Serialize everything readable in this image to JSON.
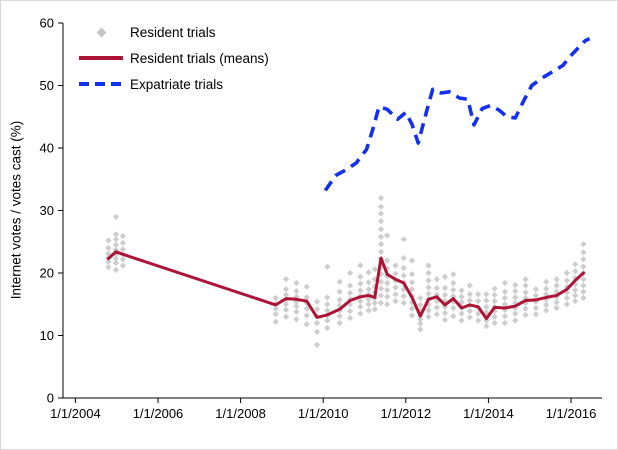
{
  "legend": {
    "position": "top-left-inside",
    "items": [
      {
        "label": "Resident trials",
        "marker": "diamond",
        "color": "#c4c4c4"
      },
      {
        "label": "Resident trials (means)",
        "marker": "solid-line",
        "color": "#ad1335"
      },
      {
        "label": "Expatriate trials",
        "marker": "dashed-line",
        "color": "#1330f0"
      }
    ]
  },
  "chart_data": {
    "type": "line",
    "title": "",
    "xlabel": "",
    "ylabel": "Internet votes / votes cast (%)",
    "grid": false,
    "legend_position": "top-left-inside",
    "xlim": [
      2003.7,
      2016.75
    ],
    "ylim": [
      0,
      60
    ],
    "y_ticks": [
      0,
      10,
      20,
      30,
      40,
      50,
      60
    ],
    "x_tick_years": [
      2004,
      2006,
      2008,
      2010,
      2012,
      2014,
      2016
    ],
    "x_tick_labels": [
      "1/1/2004",
      "1/1/2006",
      "1/1/2008",
      "1/1/2010",
      "1/1/2012",
      "1/1/2014",
      "1/1/2016"
    ],
    "series": [
      {
        "name": "Resident trials",
        "type": "scatter",
        "marker": "diamond",
        "color": "#c4c4c4",
        "clusters": [
          [
            2004.8,
            [
              20.9,
              21.8,
              22.4,
              23.1,
              24.0,
              25.2
            ]
          ],
          [
            2004.98,
            [
              20.5,
              21.6,
              22.3,
              23.0,
              23.7,
              24.5,
              25.4,
              26.2,
              29.0
            ]
          ],
          [
            2005.15,
            [
              21.2,
              22.2,
              23.0,
              23.8,
              24.8,
              25.9
            ]
          ],
          [
            2008.85,
            [
              12.2,
              13.4,
              14.3,
              15.1,
              16.0
            ]
          ],
          [
            2009.1,
            [
              13.0,
              14.1,
              15.0,
              15.7,
              16.5,
              17.4,
              19.0
            ]
          ],
          [
            2009.35,
            [
              12.6,
              13.8,
              14.7,
              15.4,
              16.2,
              17.1,
              18.4
            ]
          ],
          [
            2009.6,
            [
              11.8,
              13.2,
              14.3,
              15.2,
              16.1,
              17.8
            ]
          ],
          [
            2009.85,
            [
              8.5,
              10.6,
              12.0,
              13.1,
              14.2,
              15.4
            ]
          ],
          [
            2010.1,
            [
              11.2,
              12.4,
              13.2,
              14.0,
              15.0,
              16.1,
              21.0
            ]
          ],
          [
            2010.4,
            [
              12.0,
              13.1,
              14.0,
              14.8,
              15.7,
              17.0,
              18.6
            ]
          ],
          [
            2010.65,
            [
              12.8,
              13.9,
              15.0,
              15.8,
              16.8,
              18.0,
              20.0
            ]
          ],
          [
            2010.9,
            [
              13.5,
              14.6,
              15.5,
              16.3,
              17.2,
              18.3,
              19.4,
              21.2
            ]
          ],
          [
            2011.1,
            [
              14.0,
              15.0,
              15.8,
              16.6,
              17.4,
              18.5,
              20.1
            ]
          ],
          [
            2011.25,
            [
              14.2,
              15.2,
              16.0,
              16.9,
              17.8,
              19.0,
              20.6
            ]
          ],
          [
            2011.4,
            [
              15.2,
              16.4,
              17.5,
              18.6,
              19.8,
              21.0,
              22.2,
              23.4,
              24.6,
              25.8,
              27.0,
              28.3,
              29.5,
              30.6,
              32.0
            ]
          ],
          [
            2011.55,
            [
              15.0,
              16.2,
              17.3,
              18.4,
              19.5,
              20.7,
              22.0,
              26.0
            ]
          ],
          [
            2011.75,
            [
              15.5,
              16.6,
              17.7,
              18.8,
              19.9,
              21.2
            ]
          ],
          [
            2011.95,
            [
              15.2,
              16.3,
              17.4,
              18.5,
              19.6,
              20.8,
              22.4,
              25.4
            ]
          ],
          [
            2012.15,
            [
              13.2,
              14.3,
              15.3,
              16.3,
              17.4,
              18.5,
              19.8,
              22.0
            ]
          ],
          [
            2012.35,
            [
              11.0,
              11.9,
              12.6,
              13.3,
              14.0,
              14.9,
              16.0
            ]
          ],
          [
            2012.55,
            [
              13.0,
              14.0,
              15.0,
              15.8,
              16.7,
              17.7,
              18.8,
              20.0,
              21.2
            ]
          ],
          [
            2012.75,
            [
              13.4,
              14.5,
              15.5,
              16.5,
              17.6,
              19.0
            ]
          ],
          [
            2012.95,
            [
              12.5,
              13.6,
              14.6,
              15.5,
              16.5,
              17.6,
              19.4
            ]
          ],
          [
            2013.15,
            [
              13.1,
              14.4,
              15.4,
              16.3,
              17.3,
              18.4,
              19.8
            ]
          ],
          [
            2013.35,
            [
              12.4,
              13.5,
              14.5,
              15.3,
              16.2,
              17.2
            ]
          ],
          [
            2013.55,
            [
              12.9,
              13.9,
              14.8,
              15.6,
              16.6,
              18.0
            ]
          ],
          [
            2013.75,
            [
              12.4,
              13.5,
              14.5,
              15.5,
              16.6
            ]
          ],
          [
            2013.95,
            [
              11.5,
              12.4,
              13.0,
              13.7,
              14.6,
              15.6,
              16.6
            ]
          ],
          [
            2014.15,
            [
              12.0,
              13.0,
              13.9,
              14.6,
              15.5,
              16.5,
              17.5
            ]
          ],
          [
            2014.4,
            [
              12.0,
              13.1,
              14.1,
              15.0,
              16.0,
              17.0,
              18.4
            ]
          ],
          [
            2014.65,
            [
              12.4,
              13.5,
              14.4,
              15.2,
              16.1,
              17.1,
              18.1
            ]
          ],
          [
            2014.9,
            [
              13.3,
              14.3,
              15.2,
              16.0,
              16.9,
              18.0,
              19.0
            ]
          ],
          [
            2015.15,
            [
              13.4,
              14.4,
              15.4,
              16.4,
              17.4
            ]
          ],
          [
            2015.4,
            [
              14.0,
              14.9,
              15.8,
              16.6,
              17.5,
              18.6
            ]
          ],
          [
            2015.65,
            [
              14.4,
              15.3,
              16.2,
              17.0,
              18.0,
              19.0
            ]
          ],
          [
            2015.9,
            [
              15.0,
              16.0,
              16.9,
              17.8,
              18.8,
              20.0
            ]
          ],
          [
            2016.1,
            [
              15.5,
              16.4,
              17.3,
              18.2,
              19.2,
              20.3,
              21.4
            ]
          ],
          [
            2016.3,
            [
              16.0,
              17.0,
              18.0,
              19.0,
              20.0,
              21.0,
              22.2,
              23.3,
              24.6
            ]
          ]
        ]
      },
      {
        "name": "Resident trials (means)",
        "type": "line",
        "dash": false,
        "color": "#ad1335",
        "points": [
          [
            2004.8,
            22.3
          ],
          [
            2004.98,
            23.4
          ],
          [
            2005.15,
            23.0
          ],
          [
            2008.85,
            14.9
          ],
          [
            2009.1,
            15.9
          ],
          [
            2009.35,
            15.8
          ],
          [
            2009.6,
            15.5
          ],
          [
            2009.85,
            12.9
          ],
          [
            2010.1,
            13.3
          ],
          [
            2010.4,
            14.2
          ],
          [
            2010.65,
            15.6
          ],
          [
            2010.9,
            16.2
          ],
          [
            2011.1,
            16.4
          ],
          [
            2011.25,
            16.1
          ],
          [
            2011.4,
            22.4
          ],
          [
            2011.55,
            19.8
          ],
          [
            2011.75,
            19.0
          ],
          [
            2011.95,
            18.4
          ],
          [
            2012.15,
            16.1
          ],
          [
            2012.35,
            13.1
          ],
          [
            2012.55,
            15.8
          ],
          [
            2012.75,
            16.2
          ],
          [
            2012.95,
            14.9
          ],
          [
            2013.15,
            15.9
          ],
          [
            2013.35,
            14.4
          ],
          [
            2013.55,
            14.9
          ],
          [
            2013.75,
            14.6
          ],
          [
            2013.95,
            12.7
          ],
          [
            2014.15,
            14.5
          ],
          [
            2014.4,
            14.4
          ],
          [
            2014.65,
            14.7
          ],
          [
            2014.9,
            15.6
          ],
          [
            2015.15,
            15.7
          ],
          [
            2015.4,
            16.1
          ],
          [
            2015.65,
            16.4
          ],
          [
            2015.9,
            17.4
          ],
          [
            2016.1,
            18.8
          ],
          [
            2016.3,
            20.0
          ]
        ]
      },
      {
        "name": "Expatriate trials",
        "type": "line",
        "dash": true,
        "color": "#1330f0",
        "points": [
          [
            2010.05,
            33.2
          ],
          [
            2010.3,
            35.6
          ],
          [
            2010.55,
            36.5
          ],
          [
            2010.8,
            37.6
          ],
          [
            2011.05,
            39.8
          ],
          [
            2011.2,
            43.0
          ],
          [
            2011.35,
            46.6
          ],
          [
            2011.55,
            46.2
          ],
          [
            2011.8,
            44.6
          ],
          [
            2012.0,
            45.7
          ],
          [
            2012.15,
            43.8
          ],
          [
            2012.3,
            40.8
          ],
          [
            2012.5,
            45.8
          ],
          [
            2012.65,
            49.4
          ],
          [
            2012.85,
            48.8
          ],
          [
            2013.05,
            49.0
          ],
          [
            2013.3,
            48.0
          ],
          [
            2013.5,
            47.8
          ],
          [
            2013.65,
            43.7
          ],
          [
            2013.85,
            46.3
          ],
          [
            2014.05,
            46.8
          ],
          [
            2014.25,
            46.1
          ],
          [
            2014.45,
            45.0
          ],
          [
            2014.65,
            44.8
          ],
          [
            2014.85,
            47.5
          ],
          [
            2015.05,
            50.0
          ],
          [
            2015.3,
            51.2
          ],
          [
            2015.55,
            52.2
          ],
          [
            2015.8,
            53.2
          ],
          [
            2016.0,
            54.8
          ],
          [
            2016.2,
            56.2
          ],
          [
            2016.35,
            57.2
          ],
          [
            2016.45,
            57.5
          ]
        ]
      }
    ]
  }
}
